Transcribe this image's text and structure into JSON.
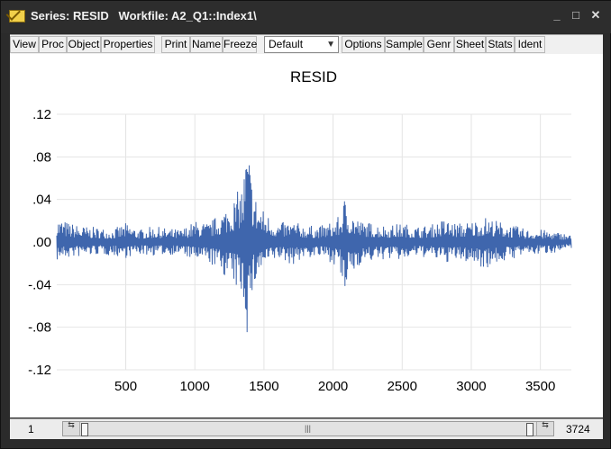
{
  "window": {
    "title": "Series: RESID   Workfile: A2_Q1::Index1\\"
  },
  "toolbar": {
    "group1": [
      "View",
      "Proc",
      "Object",
      "Properties"
    ],
    "group2": [
      "Print",
      "Name",
      "Freeze"
    ],
    "dropdown_value": "Default",
    "group3": [
      "Options",
      "Sample",
      "Genr",
      "Sheet",
      "Stats",
      "Ident"
    ]
  },
  "status": {
    "start": "1",
    "end": "3724"
  },
  "icons": {
    "app": "chart-icon",
    "minimize": "minimize-icon",
    "maximize": "maximize-icon",
    "close": "close-icon",
    "dropdown": "chevron-down-icon"
  },
  "colors": {
    "series": "#3f66ad",
    "grid": "#e4e4e4"
  },
  "chart_data": {
    "type": "line",
    "title": "RESID",
    "xlabel": "",
    "ylabel": "",
    "n_obs": 3724,
    "x_ticks": [
      500,
      1000,
      1500,
      2000,
      2500,
      3000,
      3500
    ],
    "y_ticks": [
      ".12",
      ".08",
      ".04",
      ".00",
      "-.04",
      "-.08",
      "-.12"
    ],
    "y_tick_values": [
      0.12,
      0.08,
      0.04,
      0.0,
      -0.04,
      -0.08,
      -0.12
    ],
    "ylim": [
      -0.12,
      0.12
    ],
    "xlim": [
      1,
      3724
    ],
    "grid": true,
    "series": [
      {
        "x": [
          1,
          100,
          200,
          300,
          400,
          500,
          600,
          700,
          800,
          900,
          1000,
          1100,
          1200,
          1300,
          1350,
          1380,
          1390,
          1400,
          1420,
          1450,
          1500,
          1600,
          1700,
          1800,
          1900,
          2000,
          2050,
          2080,
          2100,
          2200,
          2300,
          2400,
          2500,
          2600,
          2700,
          2800,
          2900,
          3000,
          3100,
          3200,
          3300,
          3400,
          3500,
          3600,
          3700,
          3724
        ],
        "y_high": [
          0.024,
          0.018,
          0.015,
          0.014,
          0.012,
          0.018,
          0.012,
          0.015,
          0.013,
          0.012,
          0.02,
          0.018,
          0.03,
          0.045,
          0.06,
          0.1,
          0.09,
          0.075,
          0.055,
          0.04,
          0.03,
          0.018,
          0.02,
          0.016,
          0.015,
          0.02,
          0.025,
          0.044,
          0.035,
          0.02,
          0.018,
          0.016,
          0.018,
          0.015,
          0.016,
          0.022,
          0.018,
          0.02,
          0.024,
          0.02,
          0.016,
          0.012,
          0.012,
          0.01,
          0.008,
          0.006
        ],
        "y_low": [
          -0.018,
          -0.015,
          -0.014,
          -0.012,
          -0.013,
          -0.015,
          -0.012,
          -0.013,
          -0.012,
          -0.012,
          -0.018,
          -0.02,
          -0.03,
          -0.045,
          -0.055,
          -0.09,
          -0.085,
          -0.07,
          -0.05,
          -0.035,
          -0.025,
          -0.016,
          -0.022,
          -0.015,
          -0.015,
          -0.02,
          -0.028,
          -0.068,
          -0.04,
          -0.02,
          -0.018,
          -0.016,
          -0.018,
          -0.014,
          -0.015,
          -0.02,
          -0.018,
          -0.02,
          -0.025,
          -0.02,
          -0.016,
          -0.012,
          -0.012,
          -0.01,
          -0.008,
          -0.006
        ]
      }
    ]
  }
}
